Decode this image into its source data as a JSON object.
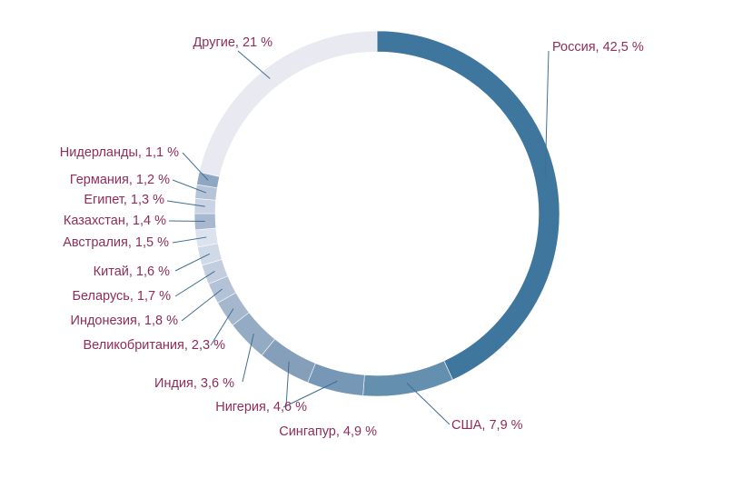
{
  "chart_data": {
    "type": "pie",
    "title": "",
    "label_color": "#8e2c5a",
    "leader_color": "#3f6f92",
    "slices": [
      {
        "label": "Россия, 42,5 %",
        "category": "Россия",
        "value": 42.5,
        "color": "#3e769d"
      },
      {
        "label": "США, 7,9 %",
        "category": "США",
        "value": 7.9,
        "color": "#658faf"
      },
      {
        "label": "Сингапур, 4,9 %",
        "category": "Сингапур",
        "value": 4.9,
        "color": "#7698b6"
      },
      {
        "label": "Нигерия, 4,6 %",
        "category": "Нигерия",
        "value": 4.6,
        "color": "#859fbb"
      },
      {
        "label": "Индия, 3,6 %",
        "category": "Индия",
        "value": 3.6,
        "color": "#94abc4"
      },
      {
        "label": "Великобритания, 2,3 %",
        "category": "Великобритания",
        "value": 2.3,
        "color": "#a4b7cd"
      },
      {
        "label": "Индонезия, 1,8 %",
        "category": "Индонезия",
        "value": 1.8,
        "color": "#b3c2d6"
      },
      {
        "label": "Беларусь, 1,7 %",
        "category": "Беларусь",
        "value": 1.7,
        "color": "#c2cedf"
      },
      {
        "label": "Китай, 1,6 %",
        "category": "Китай",
        "value": 1.6,
        "color": "#d0d9e7"
      },
      {
        "label": "Австралия, 1,5 %",
        "category": "Австралия",
        "value": 1.5,
        "color": "#dde3ee"
      },
      {
        "label": "Казахстан, 1,4 %",
        "category": "Казахстан",
        "value": 1.4,
        "color": "#a8b8cf"
      },
      {
        "label": "Египет, 1,3 %",
        "category": "Египет",
        "value": 1.3,
        "color": "#c9d3e3"
      },
      {
        "label": "Германия, 1,2 %",
        "category": "Германия",
        "value": 1.2,
        "color": "#b6c4d8"
      },
      {
        "label": "Нидерланды, 1,1 %",
        "category": "Нидерланды",
        "value": 1.1,
        "color": "#8ea8c3"
      },
      {
        "label": "Другие, 21 %",
        "category": "Другие",
        "value": 21,
        "color": "#e9e9f2"
      }
    ]
  }
}
